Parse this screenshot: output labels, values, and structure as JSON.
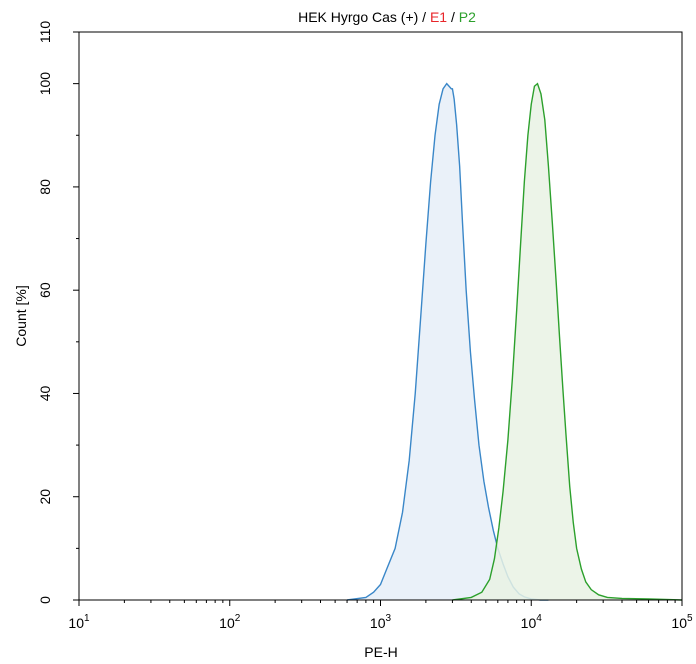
{
  "chart_data": {
    "type": "area",
    "title_parts": [
      {
        "text": "HEK Hyrgo Cas (+) / ",
        "color": "#000000"
      },
      {
        "text": "E1",
        "color": "#e8262a"
      },
      {
        "text": " / ",
        "color": "#000000"
      },
      {
        "text": "P2",
        "color": "#2ca02c"
      }
    ],
    "xlabel": "PE-H",
    "ylabel": "Count  [%]",
    "x_scale": "log",
    "xlim": [
      10,
      100000
    ],
    "ylim": [
      0,
      110
    ],
    "x_ticks": [
      {
        "base": "10",
        "exp": "1",
        "value": 10
      },
      {
        "base": "10",
        "exp": "2",
        "value": 100
      },
      {
        "base": "10",
        "exp": "3",
        "value": 1000
      },
      {
        "base": "10",
        "exp": "4",
        "value": 10000
      },
      {
        "base": "10",
        "exp": "5",
        "value": 100000
      }
    ],
    "y_ticks": [
      {
        "label": "0",
        "value": 0
      },
      {
        "label": "20",
        "value": 20
      },
      {
        "label": "40",
        "value": 40
      },
      {
        "label": "60",
        "value": 60
      },
      {
        "label": "80",
        "value": 80
      },
      {
        "label": "100",
        "value": 100
      },
      {
        "label": "110",
        "value": 110
      }
    ],
    "grid": false,
    "series": [
      {
        "color": "#3a87c8",
        "fill": "#e6eff8",
        "x": [
          600,
          800,
          900,
          1000,
          1100,
          1250,
          1400,
          1550,
          1700,
          1850,
          2000,
          2150,
          2300,
          2450,
          2600,
          2750,
          2850,
          2950,
          3000,
          3080,
          3200,
          3350,
          3500,
          3700,
          3950,
          4200,
          4500,
          4850,
          5200,
          5600,
          6000,
          6500,
          7000,
          7600,
          8300,
          9000,
          10000,
          11500,
          13000
        ],
        "y": [
          0,
          0.5,
          1.5,
          3,
          6,
          10,
          17,
          27,
          40,
          55,
          69,
          81,
          90,
          96,
          99,
          100,
          99.5,
          99,
          99,
          97,
          92,
          84,
          73,
          60,
          48,
          39,
          30,
          23,
          18,
          13.5,
          10,
          7,
          4.5,
          2.5,
          1.2,
          0.6,
          0.2,
          0,
          0
        ]
      },
      {
        "color": "#2ca02c",
        "fill": "#e9f2e4",
        "x": [
          3000,
          4000,
          4700,
          5300,
          5700,
          6100,
          6500,
          7000,
          7500,
          8000,
          8500,
          9000,
          9500,
          10000,
          10500,
          11000,
          11600,
          12300,
          13000,
          13800,
          14600,
          15400,
          16200,
          17000,
          18000,
          19000,
          20000,
          21500,
          23000,
          25000,
          28000,
          32000,
          40000,
          60000,
          100000
        ],
        "y": [
          0,
          0.5,
          1.5,
          4,
          8,
          14,
          21,
          31,
          43,
          56,
          69,
          81,
          90,
          96,
          99.5,
          100,
          98,
          93,
          84,
          73,
          62,
          51,
          41,
          32,
          22,
          15,
          10,
          6,
          3.5,
          2,
          1,
          0.5,
          0.3,
          0.2,
          0
        ]
      }
    ]
  }
}
